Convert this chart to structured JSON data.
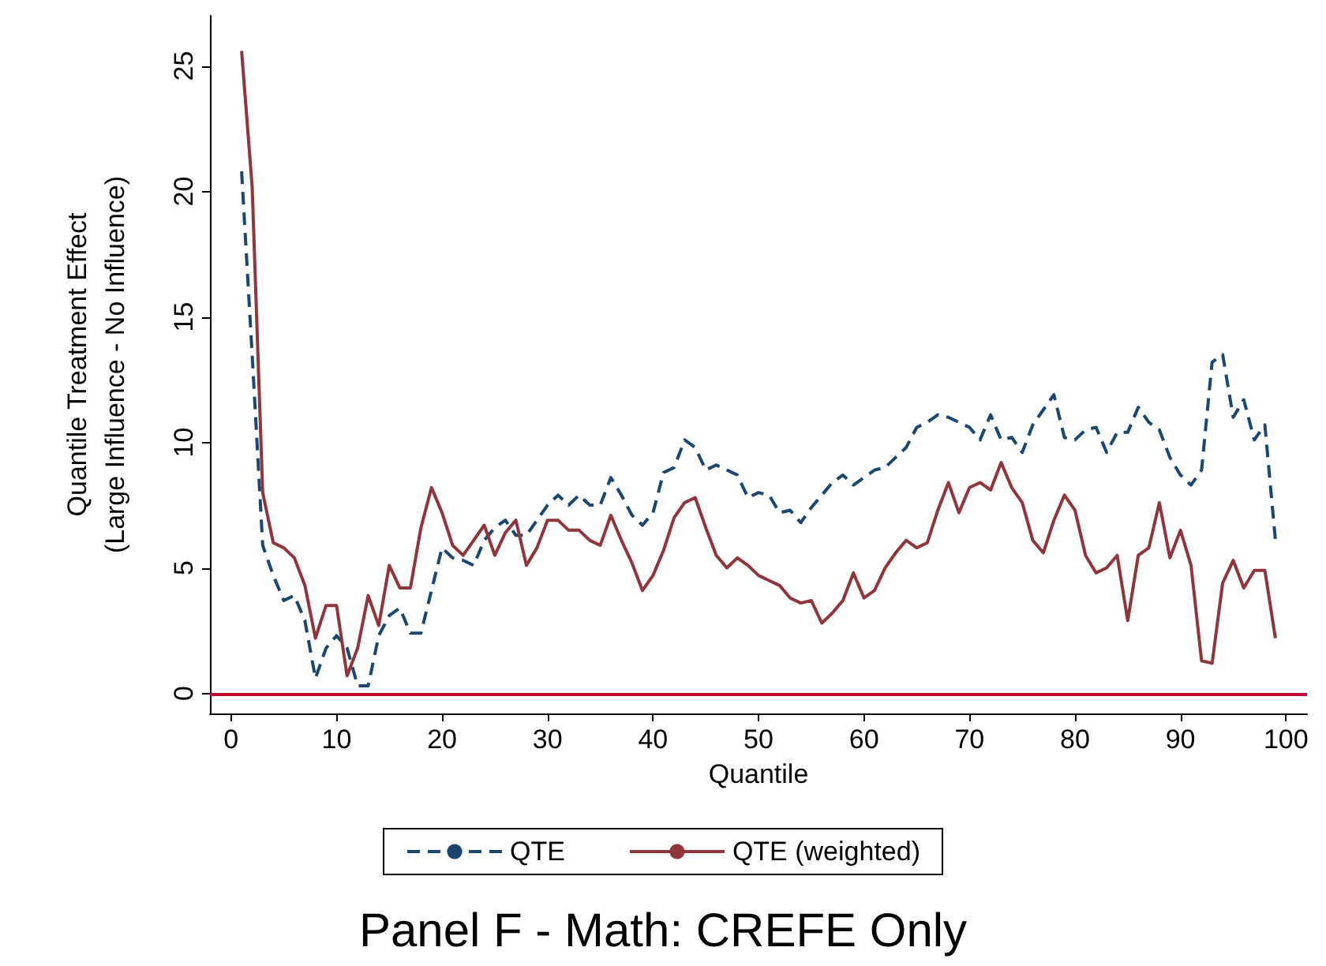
{
  "chart_data": {
    "type": "line",
    "title": "Panel F - Math: CREFE Only",
    "xlabel": "Quantile",
    "ylabel": "Quantile Treatment Effect\n(Large Influence - No Influence)",
    "x": [
      1,
      2,
      3,
      4,
      5,
      6,
      7,
      8,
      9,
      10,
      11,
      12,
      13,
      14,
      15,
      16,
      17,
      18,
      19,
      20,
      21,
      22,
      23,
      24,
      25,
      26,
      27,
      28,
      29,
      30,
      31,
      32,
      33,
      34,
      35,
      36,
      37,
      38,
      39,
      40,
      41,
      42,
      43,
      44,
      45,
      46,
      47,
      48,
      49,
      50,
      51,
      52,
      53,
      54,
      55,
      56,
      57,
      58,
      59,
      60,
      61,
      62,
      63,
      64,
      65,
      66,
      67,
      68,
      69,
      70,
      71,
      72,
      73,
      74,
      75,
      76,
      77,
      78,
      79,
      80,
      81,
      82,
      83,
      84,
      85,
      86,
      87,
      88,
      89,
      90,
      91,
      92,
      93,
      94,
      95,
      96,
      97,
      98,
      99
    ],
    "series": [
      {
        "name": "QTE",
        "color": "#1a476f",
        "line_style": "dashed",
        "values": [
          20.8,
          13.5,
          5.9,
          4.7,
          3.7,
          3.9,
          2.9,
          0.6,
          1.8,
          2.3,
          1.8,
          0.3,
          0.3,
          2.3,
          3.1,
          3.4,
          2.4,
          2.4,
          4.1,
          5.8,
          5.4,
          5.3,
          5.1,
          6.1,
          6.6,
          6.9,
          6.3,
          6.3,
          6.9,
          7.5,
          7.9,
          7.5,
          7.9,
          7.5,
          7.5,
          8.6,
          7.9,
          7.1,
          6.7,
          7.2,
          8.8,
          9.0,
          10.1,
          9.8,
          8.9,
          9.1,
          8.9,
          8.7,
          7.8,
          8.0,
          7.9,
          7.2,
          7.3,
          6.8,
          7.4,
          7.9,
          8.4,
          8.7,
          8.3,
          8.6,
          8.9,
          9.0,
          9.4,
          9.8,
          10.6,
          10.8,
          11.1,
          11.0,
          10.8,
          10.6,
          10.1,
          11.1,
          10.1,
          10.2,
          9.6,
          10.7,
          11.3,
          11.9,
          10.2,
          10.1,
          10.5,
          10.6,
          9.6,
          10.4,
          10.4,
          11.4,
          10.8,
          10.5,
          9.4,
          8.7,
          8.3,
          8.9,
          13.2,
          13.5,
          11.0,
          11.7,
          10.1,
          10.7,
          6.1
        ]
      },
      {
        "name": "QTE (weighted)",
        "color": "#90353b",
        "line_style": "solid",
        "values": [
          25.6,
          20.2,
          8.0,
          6.0,
          5.8,
          5.4,
          4.3,
          2.2,
          3.5,
          3.5,
          0.7,
          1.8,
          3.9,
          2.7,
          5.1,
          4.2,
          4.2,
          6.6,
          8.2,
          7.2,
          5.9,
          5.5,
          6.1,
          6.7,
          5.5,
          6.4,
          6.9,
          5.1,
          5.8,
          6.9,
          6.9,
          6.5,
          6.5,
          6.1,
          5.9,
          7.1,
          6.1,
          5.2,
          4.1,
          4.7,
          5.7,
          7.0,
          7.6,
          7.8,
          6.6,
          5.5,
          5.0,
          5.4,
          5.1,
          4.7,
          4.5,
          4.3,
          3.8,
          3.6,
          3.7,
          2.8,
          3.2,
          3.7,
          4.8,
          3.8,
          4.1,
          5.0,
          5.6,
          6.1,
          5.8,
          6.0,
          7.3,
          8.4,
          7.2,
          8.2,
          8.4,
          8.1,
          9.2,
          8.2,
          7.6,
          6.1,
          5.6,
          6.9,
          7.9,
          7.3,
          5.5,
          4.8,
          5.0,
          5.5,
          2.9,
          5.5,
          5.8,
          7.6,
          5.4,
          6.5,
          5.1,
          1.3,
          1.2,
          4.4,
          5.3,
          4.2,
          4.9,
          4.9,
          2.2
        ]
      }
    ],
    "xlim": [
      -2,
      102
    ],
    "xticks": [
      0,
      10,
      20,
      30,
      40,
      50,
      60,
      70,
      80,
      90,
      100
    ],
    "ylim": [
      -0.8,
      27
    ],
    "yticks": [
      0,
      5,
      10,
      15,
      20,
      25
    ],
    "ref_lines": [
      {
        "axis": "y",
        "value": 0,
        "color": "#c10534",
        "line_style": "solid"
      }
    ],
    "grid": false,
    "legend": "bottom",
    "marker": "none"
  }
}
